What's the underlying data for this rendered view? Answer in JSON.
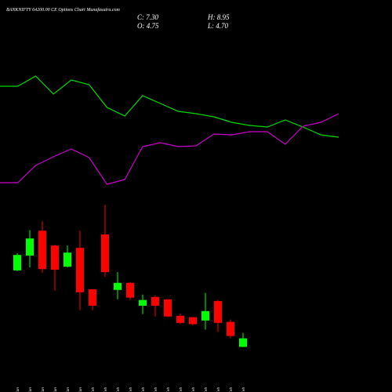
{
  "chart_data": [
    {
      "type": "candlestick",
      "title": "BANKNIFTY 64200.00 CE Options Chart Munafasutra.com",
      "ohlc_labels": [
        "C: 7.30",
        "H: 8.95",
        "O: 4.75",
        "L: 4.70"
      ],
      "x": [
        "21 Jan",
        "27 Jan",
        "28 Jan",
        "29 Jan",
        "30 Jan",
        "31 Jan",
        "01 Feb",
        "03 Feb",
        "04 Feb",
        "05 Feb",
        "06 Feb",
        "07 Feb",
        "10 Feb",
        "11 Feb",
        "12 Feb",
        "13 Feb",
        "14 Feb",
        "17 Feb",
        "18 Feb"
      ],
      "open": [
        27.5,
        31.9,
        39.3,
        34.9,
        28.6,
        34.2,
        21.9,
        38.2,
        21.7,
        23.8,
        17.0,
        19.6,
        18.9,
        14.0,
        13.6,
        12.6,
        18.4,
        12.2,
        4.75
      ],
      "high": [
        32.6,
        39.5,
        42.1,
        35.1,
        34.9,
        39.3,
        21.9,
        47.0,
        27.0,
        24.0,
        20.3,
        20.1,
        18.9,
        14.7,
        13.6,
        20.8,
        18.7,
        12.9,
        8.95
      ],
      "low": [
        27.3,
        28.4,
        26.8,
        21.5,
        28.4,
        15.7,
        15.7,
        25.6,
        18.9,
        18.7,
        14.5,
        13.8,
        13.6,
        11.5,
        11.2,
        9.9,
        9.2,
        7.3,
        4.7
      ],
      "close": [
        32.1,
        37.0,
        27.9,
        27.7,
        32.8,
        21.0,
        17.0,
        27.0,
        23.8,
        19.4,
        18.7,
        17.0,
        13.8,
        11.9,
        11.5,
        15.4,
        11.9,
        8.0,
        7.3
      ],
      "up_color": "#00ff00",
      "down_color": "#ff0000",
      "ylim": [
        3,
        48
      ]
    },
    {
      "type": "line",
      "ylim": [
        0,
        170
      ],
      "series": [
        {
          "color": "#00dd00",
          "values": [
            140,
            140,
            153,
            130,
            148,
            142,
            113,
            102,
            128,
            118,
            108,
            105,
            101,
            94,
            90,
            88,
            97,
            88,
            78,
            75
          ]
        },
        {
          "color": "#cc00cc",
          "values": [
            17,
            17,
            39,
            50,
            60,
            49,
            15,
            21,
            63,
            68,
            63,
            64,
            79,
            78,
            82,
            82,
            66,
            89,
            94,
            105
          ]
        }
      ]
    }
  ]
}
